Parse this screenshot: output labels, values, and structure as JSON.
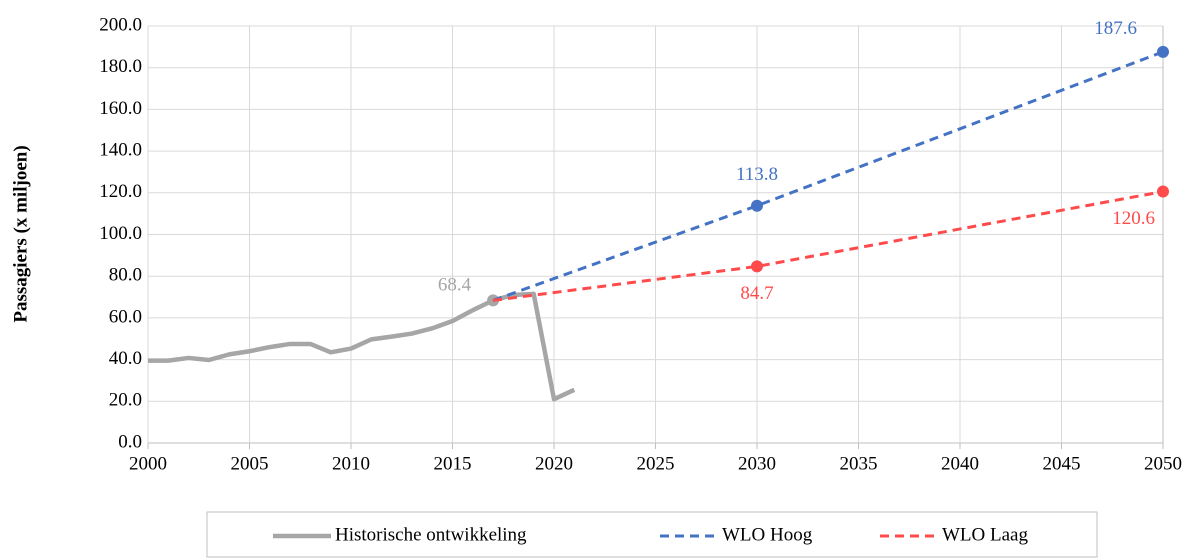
{
  "chart_data": {
    "type": "line",
    "y_label": "Passagiers (x miljoen)",
    "xlim": [
      2000,
      2050
    ],
    "xticks": [
      2000,
      2005,
      2010,
      2015,
      2020,
      2025,
      2030,
      2035,
      2040,
      2045,
      2050
    ],
    "ylim": [
      0,
      200
    ],
    "yticks": [
      {
        "value": 0,
        "label": "0.0"
      },
      {
        "value": 20,
        "label": "20.0"
      },
      {
        "value": 40,
        "label": "40.0"
      },
      {
        "value": 60,
        "label": "60.0"
      },
      {
        "value": 80,
        "label": "80.0"
      },
      {
        "value": 100,
        "label": "100.0"
      },
      {
        "value": 120,
        "label": "120.0"
      },
      {
        "value": 140,
        "label": "140.0"
      },
      {
        "value": 160,
        "label": "160.0"
      },
      {
        "value": 180,
        "label": "180.0"
      },
      {
        "value": 200,
        "label": "200.0"
      }
    ],
    "grid": true,
    "legend": "bottom",
    "series": [
      {
        "name": "Historische ontwikkeling",
        "color": "#a6a6a6",
        "dashed": false,
        "x": [
          2000,
          2001,
          2002,
          2003,
          2004,
          2005,
          2006,
          2007,
          2008,
          2009,
          2010,
          2011,
          2012,
          2013,
          2014,
          2015,
          2016,
          2017,
          2018,
          2019,
          2020,
          2021
        ],
        "values": [
          39.5,
          39.5,
          40.8,
          39.8,
          42.5,
          44,
          46,
          47.5,
          47.5,
          43.5,
          45.3,
          49.7,
          51,
          52.5,
          55,
          58.5,
          63.7,
          68.4,
          71,
          71.5,
          21,
          25.5
        ],
        "markers": [
          2017
        ]
      },
      {
        "name": "WLO Hoog",
        "color": "#4472c4",
        "dashed": true,
        "x": [
          2017,
          2030,
          2050
        ],
        "values": [
          68.4,
          113.8,
          187.6
        ],
        "markers": [
          2030,
          2050
        ]
      },
      {
        "name": "WLO Laag",
        "color": "#ff4b4b",
        "dashed": true,
        "x": [
          2017,
          2030,
          2050
        ],
        "values": [
          68.4,
          84.7,
          120.6
        ],
        "markers": [
          2030,
          2050
        ]
      }
    ]
  }
}
